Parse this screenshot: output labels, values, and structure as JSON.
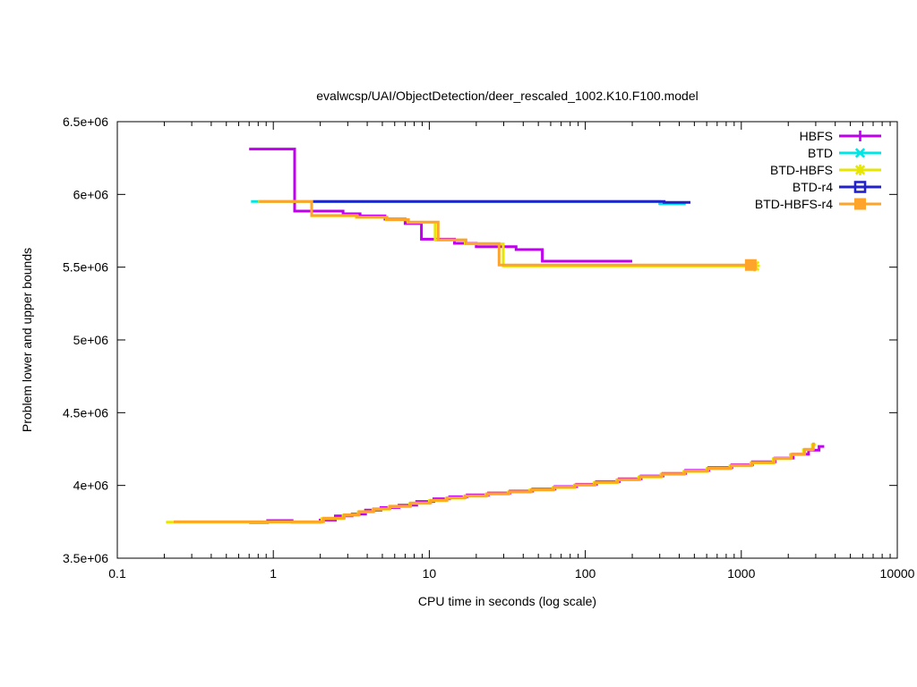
{
  "chart": {
    "title": "evalwcsp/UAI/ObjectDetection/deer_rescaled_1002.K10.F100.model",
    "xlabel": "CPU time in seconds (log scale)",
    "ylabel": "Problem lower and upper bounds"
  },
  "chart_data": {
    "type": "line",
    "title": "evalwcsp/UAI/ObjectDetection/deer_rescaled_1002.K10.F100.model",
    "xlabel": "CPU time in seconds (log scale)",
    "ylabel": "Problem lower and upper bounds",
    "x_scale": "log",
    "grid": false,
    "legend_position": "top-right-inside",
    "xlim": [
      0.1,
      10000
    ],
    "ylim": [
      3500000,
      6500000
    ],
    "x_ticks": [
      {
        "value": 0.1,
        "label": "0.1"
      },
      {
        "value": 1,
        "label": "1"
      },
      {
        "value": 10,
        "label": "10"
      },
      {
        "value": 100,
        "label": "100"
      },
      {
        "value": 1000,
        "label": "1000"
      },
      {
        "value": 10000,
        "label": "10000"
      }
    ],
    "y_ticks": [
      {
        "value": 3500000,
        "label": "3.5e+06"
      },
      {
        "value": 4000000,
        "label": "4e+06"
      },
      {
        "value": 4500000,
        "label": "4.5e+06"
      },
      {
        "value": 5000000,
        "label": "5e+06"
      },
      {
        "value": 5500000,
        "label": "5.5e+06"
      },
      {
        "value": 6000000,
        "label": "6e+06"
      },
      {
        "value": 6500000,
        "label": "6.5e+06"
      }
    ],
    "series": [
      {
        "name": "HBFS",
        "color": "#bf00ef",
        "marker": "plus",
        "upper": [
          [
            0.7,
            6312000
          ],
          [
            1.37,
            6312000
          ],
          [
            1.37,
            5885000
          ],
          [
            2.8,
            5885000
          ],
          [
            2.8,
            5867000
          ],
          [
            3.6,
            5867000
          ],
          [
            3.6,
            5852000
          ],
          [
            5.2,
            5852000
          ],
          [
            5.2,
            5830000
          ],
          [
            7,
            5830000
          ],
          [
            7,
            5800000
          ],
          [
            8.9,
            5800000
          ],
          [
            8.9,
            5692000
          ],
          [
            14.5,
            5692000
          ],
          [
            14.5,
            5664000
          ],
          [
            20,
            5664000
          ],
          [
            20,
            5641000
          ],
          [
            36,
            5641000
          ],
          [
            36,
            5621000
          ],
          [
            53,
            5621000
          ],
          [
            53,
            5541000
          ],
          [
            200,
            5541000
          ]
        ],
        "lower": [
          [
            0.7,
            3745000
          ],
          [
            0.92,
            3745000
          ],
          [
            0.92,
            3758000
          ],
          [
            1.32,
            3758000
          ],
          [
            1.32,
            3748000
          ],
          [
            2.0,
            3748000
          ],
          [
            2.0,
            3762000
          ],
          [
            2.5,
            3762000
          ],
          [
            2.5,
            3790000
          ],
          [
            3.2,
            3790000
          ],
          [
            3.2,
            3803000
          ],
          [
            3.9,
            3803000
          ],
          [
            3.9,
            3830000
          ],
          [
            4.9,
            3830000
          ],
          [
            4.9,
            3848000
          ],
          [
            6.4,
            3848000
          ],
          [
            6.4,
            3864000
          ],
          [
            8.3,
            3864000
          ],
          [
            8.3,
            3890000
          ],
          [
            10.7,
            3890000
          ],
          [
            10.7,
            3908000
          ],
          [
            13.5,
            3908000
          ],
          [
            13.5,
            3922000
          ],
          [
            17.5,
            3922000
          ],
          [
            17.5,
            3935000
          ],
          [
            24,
            3935000
          ],
          [
            24,
            3948000
          ],
          [
            33,
            3948000
          ],
          [
            33,
            3961000
          ],
          [
            46,
            3961000
          ],
          [
            46,
            3975000
          ],
          [
            64,
            3975000
          ],
          [
            64,
            3992000
          ],
          [
            88,
            3992000
          ],
          [
            88,
            4008000
          ],
          [
            118,
            4008000
          ],
          [
            118,
            4026000
          ],
          [
            165,
            4026000
          ],
          [
            165,
            4045000
          ],
          [
            228,
            4045000
          ],
          [
            228,
            4065000
          ],
          [
            315,
            4065000
          ],
          [
            315,
            4083000
          ],
          [
            440,
            4083000
          ],
          [
            440,
            4103000
          ],
          [
            620,
            4103000
          ],
          [
            620,
            4122000
          ],
          [
            870,
            4122000
          ],
          [
            870,
            4142000
          ],
          [
            1180,
            4142000
          ],
          [
            1180,
            4162000
          ],
          [
            1650,
            4162000
          ],
          [
            1650,
            4188000
          ],
          [
            2150,
            4188000
          ],
          [
            2150,
            4215000
          ],
          [
            2700,
            4215000
          ],
          [
            2700,
            4242000
          ],
          [
            3150,
            4242000
          ],
          [
            3150,
            4268000
          ],
          [
            3400,
            4268000
          ]
        ],
        "upper_end_marker": false
      },
      {
        "name": "BTD",
        "color": "#00e6e6",
        "marker": "cross",
        "upper": [
          [
            0.72,
            5951000
          ],
          [
            300,
            5951000
          ],
          [
            300,
            5936000
          ],
          [
            440,
            5936000
          ]
        ],
        "lower": null,
        "upper_end_marker": false
      },
      {
        "name": "BTD-HBFS",
        "color": "#e6e600",
        "marker": "star",
        "upper": [
          [
            0.8,
            5951000
          ],
          [
            1.76,
            5951000
          ],
          [
            1.76,
            5853000
          ],
          [
            3.4,
            5853000
          ],
          [
            3.4,
            5842000
          ],
          [
            5.3,
            5842000
          ],
          [
            5.3,
            5825000
          ],
          [
            7.3,
            5825000
          ],
          [
            7.3,
            5808000
          ],
          [
            10.9,
            5808000
          ],
          [
            10.9,
            5686000
          ],
          [
            17,
            5686000
          ],
          [
            17,
            5660000
          ],
          [
            29.8,
            5660000
          ],
          [
            29.8,
            5508000
          ],
          [
            1215,
            5508000
          ]
        ],
        "lower": [
          [
            0.205,
            3748000
          ],
          [
            2.05,
            3748000
          ],
          [
            2.05,
            3772000
          ],
          [
            2.8,
            3772000
          ],
          [
            2.8,
            3795000
          ],
          [
            3.5,
            3795000
          ],
          [
            3.5,
            3817000
          ],
          [
            4.35,
            3817000
          ],
          [
            4.35,
            3837000
          ],
          [
            5.5,
            3837000
          ],
          [
            5.5,
            3854000
          ],
          [
            7.5,
            3854000
          ],
          [
            7.5,
            3877000
          ],
          [
            10,
            3877000
          ],
          [
            10,
            3895000
          ],
          [
            12.8,
            3895000
          ],
          [
            12.8,
            3912000
          ],
          [
            16.7,
            3912000
          ],
          [
            16.7,
            3926000
          ],
          [
            23,
            3926000
          ],
          [
            23,
            3940000
          ],
          [
            32,
            3940000
          ],
          [
            32,
            3954000
          ],
          [
            44,
            3954000
          ],
          [
            44,
            3968000
          ],
          [
            62,
            3968000
          ],
          [
            62,
            3985000
          ],
          [
            85,
            3985000
          ],
          [
            85,
            4001000
          ],
          [
            114,
            4001000
          ],
          [
            114,
            4019000
          ],
          [
            159,
            4019000
          ],
          [
            159,
            4038000
          ],
          [
            220,
            4038000
          ],
          [
            220,
            4058000
          ],
          [
            305,
            4058000
          ],
          [
            305,
            4076000
          ],
          [
            428,
            4076000
          ],
          [
            428,
            4096000
          ],
          [
            600,
            4096000
          ],
          [
            600,
            4115000
          ],
          [
            845,
            4115000
          ],
          [
            845,
            4135000
          ],
          [
            1150,
            4135000
          ],
          [
            1150,
            4155000
          ],
          [
            1600,
            4155000
          ],
          [
            1600,
            4183000
          ],
          [
            2060,
            4183000
          ],
          [
            2060,
            4212000
          ],
          [
            2500,
            4212000
          ],
          [
            2500,
            4245000
          ],
          [
            2850,
            4245000
          ],
          [
            2850,
            4280000
          ],
          [
            3000,
            4280000
          ]
        ],
        "upper_end_marker": true
      },
      {
        "name": "BTD-r4",
        "color": "#2222c8",
        "marker": "square-open",
        "upper": [
          [
            1.8,
            5951000
          ],
          [
            320,
            5951000
          ],
          [
            320,
            5945000
          ],
          [
            472,
            5945000
          ]
        ],
        "lower": null,
        "upper_end_marker": false
      },
      {
        "name": "BTD-HBFS-r4",
        "color": "#ffa42a",
        "marker": "square-filled",
        "upper": [
          [
            0.81,
            5951000
          ],
          [
            1.76,
            5951000
          ],
          [
            1.76,
            5855000
          ],
          [
            3.45,
            5855000
          ],
          [
            3.45,
            5844000
          ],
          [
            5.35,
            5844000
          ],
          [
            5.35,
            5827000
          ],
          [
            7.35,
            5827000
          ],
          [
            7.35,
            5810000
          ],
          [
            11.4,
            5810000
          ],
          [
            11.4,
            5688000
          ],
          [
            17.2,
            5688000
          ],
          [
            17.2,
            5662000
          ],
          [
            28,
            5662000
          ],
          [
            28,
            5515000
          ],
          [
            1150,
            5515000
          ]
        ],
        "lower": [
          [
            0.23,
            3750000
          ],
          [
            2.1,
            3750000
          ],
          [
            2.1,
            3775000
          ],
          [
            2.85,
            3775000
          ],
          [
            2.85,
            3798000
          ],
          [
            3.55,
            3798000
          ],
          [
            3.55,
            3820000
          ],
          [
            4.4,
            3820000
          ],
          [
            4.4,
            3840000
          ],
          [
            5.6,
            3840000
          ],
          [
            5.6,
            3857000
          ],
          [
            7.6,
            3857000
          ],
          [
            7.6,
            3880000
          ],
          [
            10.2,
            3880000
          ],
          [
            10.2,
            3898000
          ],
          [
            13,
            3898000
          ],
          [
            13,
            3915000
          ],
          [
            17,
            3915000
          ],
          [
            17,
            3929000
          ],
          [
            23.5,
            3929000
          ],
          [
            23.5,
            3943000
          ],
          [
            32.5,
            3943000
          ],
          [
            32.5,
            3957000
          ],
          [
            45,
            3957000
          ],
          [
            45,
            3971000
          ],
          [
            63,
            3971000
          ],
          [
            63,
            3988000
          ],
          [
            86,
            3988000
          ],
          [
            86,
            4004000
          ],
          [
            116,
            4004000
          ],
          [
            116,
            4022000
          ],
          [
            162,
            4022000
          ],
          [
            162,
            4041000
          ],
          [
            224,
            4041000
          ],
          [
            224,
            4061000
          ],
          [
            310,
            4061000
          ],
          [
            310,
            4079000
          ],
          [
            435,
            4079000
          ],
          [
            435,
            4099000
          ],
          [
            610,
            4099000
          ],
          [
            610,
            4118000
          ],
          [
            860,
            4118000
          ],
          [
            860,
            4138000
          ],
          [
            1170,
            4138000
          ],
          [
            1170,
            4158000
          ],
          [
            1630,
            4158000
          ],
          [
            1630,
            4186000
          ],
          [
            2100,
            4186000
          ],
          [
            2100,
            4215000
          ],
          [
            2550,
            4215000
          ],
          [
            2550,
            4248000
          ],
          [
            2900,
            4248000
          ],
          [
            2900,
            4285000
          ],
          [
            2960,
            4285000
          ]
        ],
        "upper_end_marker": true
      }
    ]
  }
}
